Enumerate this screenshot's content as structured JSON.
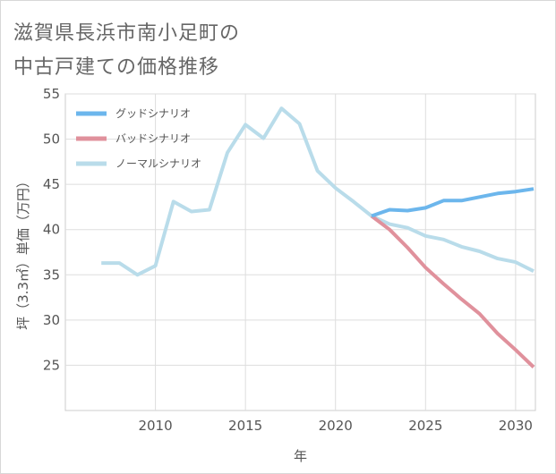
{
  "title_line1": "滋賀県長浜市南小足町の",
  "title_line2": "中古戸建ての価格推移",
  "chart_data": {
    "type": "line",
    "xlabel": "年",
    "ylabel": "坪（3.3㎡）単価（万円）",
    "xlim": [
      2005,
      2031
    ],
    "ylim": [
      20,
      55
    ],
    "xticks": [
      2010,
      2015,
      2020,
      2025,
      2030
    ],
    "yticks": [
      25,
      30,
      35,
      40,
      45,
      50,
      55
    ],
    "grid": true,
    "legend_position": "top-left",
    "series": [
      {
        "name": "グッドシナリオ",
        "color": "#6cb6ec",
        "x": [
          2022,
          2023,
          2024,
          2025,
          2026,
          2027,
          2028,
          2029,
          2030,
          2031
        ],
        "values": [
          41.5,
          42.2,
          42.1,
          42.4,
          43.2,
          43.2,
          43.6,
          44.0,
          44.2,
          44.5
        ]
      },
      {
        "name": "バッドシナリオ",
        "color": "#e0919c",
        "x": [
          2022,
          2023,
          2024,
          2025,
          2026,
          2027,
          2028,
          2029,
          2030,
          2031
        ],
        "values": [
          41.5,
          40.0,
          38.0,
          35.8,
          34.0,
          32.3,
          30.7,
          28.5,
          26.7,
          24.8
        ]
      },
      {
        "name": "ノーマルシナリオ",
        "color": "#b9dcea",
        "x": [
          2007,
          2008,
          2009,
          2010,
          2011,
          2012,
          2013,
          2014,
          2015,
          2016,
          2017,
          2018,
          2019,
          2020,
          2021,
          2022,
          2023,
          2024,
          2025,
          2026,
          2027,
          2028,
          2029,
          2030,
          2031
        ],
        "values": [
          36.3,
          36.3,
          35.0,
          36.0,
          43.1,
          42.0,
          42.2,
          48.5,
          51.6,
          50.1,
          53.4,
          51.7,
          46.5,
          44.6,
          43.1,
          41.5,
          40.6,
          40.2,
          39.3,
          38.9,
          38.1,
          37.6,
          36.8,
          36.4,
          35.4
        ]
      }
    ]
  }
}
